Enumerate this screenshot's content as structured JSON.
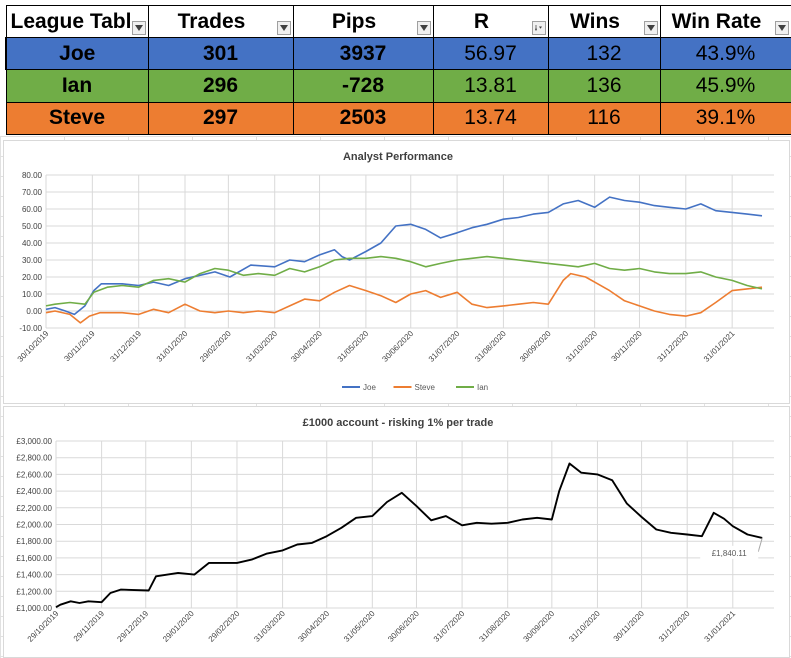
{
  "league_table": {
    "headers": [
      "League Tabl",
      "Trades",
      "Pips",
      "R",
      "Wins",
      "Win Rate"
    ],
    "sorted_column": "R",
    "rows": [
      {
        "name": "Joe",
        "trades": "301",
        "pips": "3937",
        "r": "56.97",
        "wins": "132",
        "win_rate": "43.9%",
        "color": "#4472c4"
      },
      {
        "name": "Ian",
        "trades": "296",
        "pips": "-728",
        "r": "13.81",
        "wins": "136",
        "win_rate": "45.9%",
        "color": "#70ad47"
      },
      {
        "name": "Steve",
        "trades": "297",
        "pips": "2503",
        "r": "13.74",
        "wins": "116",
        "win_rate": "39.1%",
        "color": "#ed7d31"
      }
    ]
  },
  "chart_data": [
    {
      "type": "line",
      "title": "Analyst Performance",
      "ylim": [
        -10,
        80
      ],
      "yticks": [
        "-10.00",
        "0.00",
        "10.00",
        "20.00",
        "30.00",
        "40.00",
        "50.00",
        "60.00",
        "70.00",
        "80.00"
      ],
      "xticks": [
        "30/10/2019",
        "30/11/2019",
        "31/12/2019",
        "31/01/2020",
        "29/02/2020",
        "31/03/2020",
        "30/04/2020",
        "31/05/2020",
        "30/06/2020",
        "31/07/2020",
        "31/08/2020",
        "30/09/2020",
        "31/10/2020",
        "30/11/2020",
        "31/12/2020",
        "31/01/2021"
      ],
      "x_range": [
        "2019-10-30",
        "2021-02-28"
      ],
      "grid": true,
      "legend_position": "bottom",
      "series": [
        {
          "name": "Joe",
          "color": "#4472c4",
          "points": [
            [
              "2019-10-30",
              1
            ],
            [
              "2019-11-05",
              2
            ],
            [
              "2019-11-12",
              0
            ],
            [
              "2019-11-18",
              -2
            ],
            [
              "2019-11-25",
              3
            ],
            [
              "2019-12-01",
              12
            ],
            [
              "2019-12-06",
              16
            ],
            [
              "2019-12-20",
              16
            ],
            [
              "2019-12-31",
              15
            ],
            [
              "2020-01-10",
              17
            ],
            [
              "2020-01-20",
              15
            ],
            [
              "2020-01-31",
              19
            ],
            [
              "2020-02-10",
              21
            ],
            [
              "2020-02-20",
              23
            ],
            [
              "2020-03-01",
              20
            ],
            [
              "2020-03-15",
              27
            ],
            [
              "2020-03-31",
              26
            ],
            [
              "2020-04-10",
              30
            ],
            [
              "2020-04-20",
              29
            ],
            [
              "2020-04-30",
              33
            ],
            [
              "2020-05-10",
              36
            ],
            [
              "2020-05-15",
              32
            ],
            [
              "2020-05-20",
              30
            ],
            [
              "2020-05-31",
              35
            ],
            [
              "2020-06-10",
              40
            ],
            [
              "2020-06-20",
              50
            ],
            [
              "2020-06-30",
              51
            ],
            [
              "2020-07-10",
              48
            ],
            [
              "2020-07-20",
              43
            ],
            [
              "2020-07-31",
              46
            ],
            [
              "2020-08-10",
              49
            ],
            [
              "2020-08-20",
              51
            ],
            [
              "2020-08-31",
              54
            ],
            [
              "2020-09-10",
              55
            ],
            [
              "2020-09-20",
              57
            ],
            [
              "2020-09-30",
              58
            ],
            [
              "2020-10-10",
              63
            ],
            [
              "2020-10-20",
              65
            ],
            [
              "2020-10-31",
              61
            ],
            [
              "2020-11-10",
              67
            ],
            [
              "2020-11-20",
              65
            ],
            [
              "2020-11-30",
              64
            ],
            [
              "2020-12-10",
              62
            ],
            [
              "2020-12-20",
              61
            ],
            [
              "2020-12-31",
              60
            ],
            [
              "2021-01-10",
              63
            ],
            [
              "2021-01-20",
              59
            ],
            [
              "2021-01-31",
              58
            ],
            [
              "2021-02-10",
              57
            ],
            [
              "2021-02-20",
              56
            ]
          ]
        },
        {
          "name": "Steve",
          "color": "#ed7d31",
          "points": [
            [
              "2019-10-30",
              -1
            ],
            [
              "2019-11-05",
              0
            ],
            [
              "2019-11-15",
              -2
            ],
            [
              "2019-11-22",
              -7
            ],
            [
              "2019-11-28",
              -3
            ],
            [
              "2019-12-05",
              -1
            ],
            [
              "2019-12-20",
              -1
            ],
            [
              "2019-12-31",
              -2
            ],
            [
              "2020-01-10",
              1
            ],
            [
              "2020-01-20",
              -1
            ],
            [
              "2020-01-31",
              4
            ],
            [
              "2020-02-10",
              0
            ],
            [
              "2020-02-20",
              -1
            ],
            [
              "2020-02-29",
              0
            ],
            [
              "2020-03-10",
              -1
            ],
            [
              "2020-03-20",
              0
            ],
            [
              "2020-03-31",
              -1
            ],
            [
              "2020-04-10",
              3
            ],
            [
              "2020-04-20",
              7
            ],
            [
              "2020-04-30",
              6
            ],
            [
              "2020-05-10",
              11
            ],
            [
              "2020-05-20",
              15
            ],
            [
              "2020-05-31",
              12
            ],
            [
              "2020-06-10",
              9
            ],
            [
              "2020-06-20",
              5
            ],
            [
              "2020-06-30",
              10
            ],
            [
              "2020-07-10",
              12
            ],
            [
              "2020-07-20",
              8
            ],
            [
              "2020-07-31",
              11
            ],
            [
              "2020-08-10",
              4
            ],
            [
              "2020-08-20",
              2
            ],
            [
              "2020-08-31",
              3
            ],
            [
              "2020-09-10",
              4
            ],
            [
              "2020-09-20",
              5
            ],
            [
              "2020-09-30",
              4
            ],
            [
              "2020-10-10",
              18
            ],
            [
              "2020-10-15",
              22
            ],
            [
              "2020-10-25",
              20
            ],
            [
              "2020-10-31",
              17
            ],
            [
              "2020-11-10",
              12
            ],
            [
              "2020-11-20",
              6
            ],
            [
              "2020-11-30",
              3
            ],
            [
              "2020-12-10",
              0
            ],
            [
              "2020-12-20",
              -2
            ],
            [
              "2020-12-31",
              -3
            ],
            [
              "2021-01-10",
              -1
            ],
            [
              "2021-01-20",
              5
            ],
            [
              "2021-01-31",
              12
            ],
            [
              "2021-02-10",
              13
            ],
            [
              "2021-02-20",
              14
            ]
          ]
        },
        {
          "name": "Ian",
          "color": "#70ad47",
          "points": [
            [
              "2019-10-30",
              3
            ],
            [
              "2019-11-05",
              4
            ],
            [
              "2019-11-15",
              5
            ],
            [
              "2019-11-25",
              4
            ],
            [
              "2019-12-01",
              11
            ],
            [
              "2019-12-10",
              14
            ],
            [
              "2019-12-20",
              15
            ],
            [
              "2019-12-31",
              14
            ],
            [
              "2020-01-10",
              18
            ],
            [
              "2020-01-20",
              19
            ],
            [
              "2020-01-31",
              17
            ],
            [
              "2020-02-10",
              22
            ],
            [
              "2020-02-20",
              25
            ],
            [
              "2020-02-29",
              24
            ],
            [
              "2020-03-10",
              21
            ],
            [
              "2020-03-20",
              22
            ],
            [
              "2020-03-31",
              21
            ],
            [
              "2020-04-10",
              25
            ],
            [
              "2020-04-20",
              23
            ],
            [
              "2020-04-30",
              26
            ],
            [
              "2020-05-10",
              30
            ],
            [
              "2020-05-20",
              31
            ],
            [
              "2020-05-31",
              31
            ],
            [
              "2020-06-10",
              32
            ],
            [
              "2020-06-20",
              31
            ],
            [
              "2020-06-30",
              29
            ],
            [
              "2020-07-10",
              26
            ],
            [
              "2020-07-20",
              28
            ],
            [
              "2020-07-31",
              30
            ],
            [
              "2020-08-10",
              31
            ],
            [
              "2020-08-20",
              32
            ],
            [
              "2020-08-31",
              31
            ],
            [
              "2020-09-10",
              30
            ],
            [
              "2020-09-20",
              29
            ],
            [
              "2020-09-30",
              28
            ],
            [
              "2020-10-10",
              27
            ],
            [
              "2020-10-20",
              26
            ],
            [
              "2020-10-31",
              28
            ],
            [
              "2020-11-10",
              25
            ],
            [
              "2020-11-20",
              24
            ],
            [
              "2020-11-30",
              25
            ],
            [
              "2020-12-10",
              23
            ],
            [
              "2020-12-20",
              22
            ],
            [
              "2020-12-31",
              22
            ],
            [
              "2021-01-10",
              23
            ],
            [
              "2021-01-20",
              20
            ],
            [
              "2021-01-31",
              18
            ],
            [
              "2021-02-10",
              15
            ],
            [
              "2021-02-20",
              13
            ]
          ]
        }
      ]
    },
    {
      "type": "line",
      "title": "£1000 account - risking 1% per trade",
      "ylim": [
        1000,
        3000
      ],
      "yticks": [
        "£1,000.00",
        "£1,200.00",
        "£1,400.00",
        "£1,600.00",
        "£1,800.00",
        "£2,000.00",
        "£2,200.00",
        "£2,400.00",
        "£2,600.00",
        "£2,800.00",
        "£3,000.00"
      ],
      "xticks": [
        "29/10/2019",
        "29/11/2019",
        "29/12/2019",
        "29/01/2020",
        "29/02/2020",
        "31/03/2020",
        "30/04/2020",
        "31/05/2020",
        "30/06/2020",
        "31/07/2020",
        "31/08/2020",
        "30/09/2020",
        "31/10/2020",
        "30/11/2020",
        "31/12/2020",
        "31/01/2021"
      ],
      "x_range": [
        "2019-10-29",
        "2021-02-28"
      ],
      "grid": true,
      "annotation": "£1,840.11",
      "series": [
        {
          "name": "",
          "color": "#000000",
          "points": [
            [
              "2019-10-29",
              1010
            ],
            [
              "2019-11-01",
              1040
            ],
            [
              "2019-11-08",
              1080
            ],
            [
              "2019-11-14",
              1060
            ],
            [
              "2019-11-20",
              1080
            ],
            [
              "2019-11-29",
              1070
            ],
            [
              "2019-12-05",
              1180
            ],
            [
              "2019-12-12",
              1220
            ],
            [
              "2019-12-31",
              1210
            ],
            [
              "2020-01-05",
              1380
            ],
            [
              "2020-01-20",
              1420
            ],
            [
              "2020-01-31",
              1400
            ],
            [
              "2020-02-10",
              1540
            ],
            [
              "2020-02-29",
              1540
            ],
            [
              "2020-03-10",
              1580
            ],
            [
              "2020-03-20",
              1650
            ],
            [
              "2020-03-31",
              1690
            ],
            [
              "2020-04-10",
              1760
            ],
            [
              "2020-04-20",
              1780
            ],
            [
              "2020-04-30",
              1860
            ],
            [
              "2020-05-10",
              1960
            ],
            [
              "2020-05-20",
              2080
            ],
            [
              "2020-05-31",
              2100
            ],
            [
              "2020-06-10",
              2270
            ],
            [
              "2020-06-20",
              2380
            ],
            [
              "2020-06-30",
              2220
            ],
            [
              "2020-07-10",
              2050
            ],
            [
              "2020-07-20",
              2100
            ],
            [
              "2020-07-31",
              1990
            ],
            [
              "2020-08-10",
              2020
            ],
            [
              "2020-08-20",
              2010
            ],
            [
              "2020-08-31",
              2020
            ],
            [
              "2020-09-10",
              2060
            ],
            [
              "2020-09-20",
              2080
            ],
            [
              "2020-09-30",
              2060
            ],
            [
              "2020-10-05",
              2400
            ],
            [
              "2020-10-12",
              2730
            ],
            [
              "2020-10-20",
              2620
            ],
            [
              "2020-10-31",
              2600
            ],
            [
              "2020-11-10",
              2530
            ],
            [
              "2020-11-20",
              2250
            ],
            [
              "2020-11-30",
              2090
            ],
            [
              "2020-12-10",
              1940
            ],
            [
              "2020-12-20",
              1900
            ],
            [
              "2020-12-31",
              1880
            ],
            [
              "2021-01-10",
              1860
            ],
            [
              "2021-01-18",
              2140
            ],
            [
              "2021-01-25",
              2070
            ],
            [
              "2021-01-31",
              1980
            ],
            [
              "2021-02-10",
              1880
            ],
            [
              "2021-02-20",
              1840
            ]
          ]
        }
      ]
    }
  ]
}
